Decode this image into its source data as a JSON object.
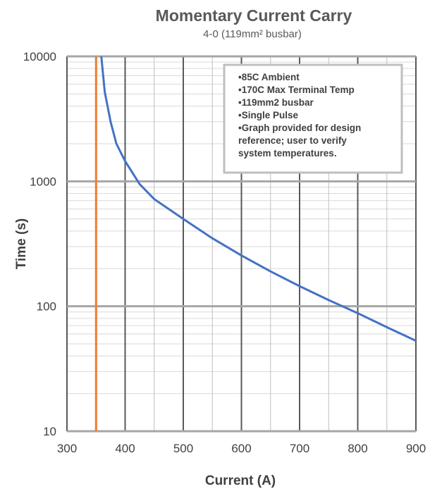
{
  "chart_data": {
    "type": "line",
    "title": "Momentary Current Carry",
    "subtitle": "4-0 (119mm² busbar)",
    "xlabel": "Current (A)",
    "ylabel": "Time (s)",
    "xlim": [
      300,
      900
    ],
    "ylim": [
      10,
      10000
    ],
    "y_scale": "log",
    "x_ticks": [
      "300",
      "400",
      "500",
      "600",
      "700",
      "800",
      "900"
    ],
    "y_ticks": [
      "10",
      "100",
      "1000",
      "10000"
    ],
    "grid": true,
    "series": [
      {
        "color": "#4472C4",
        "x": [
          359,
          365,
          375,
          385,
          400,
          425,
          450,
          500,
          550,
          600,
          650,
          700,
          750,
          800,
          850,
          900
        ],
        "y": [
          10000,
          5200,
          3000,
          2000,
          1450,
          950,
          720,
          500,
          350,
          255,
          190,
          145,
          112,
          88,
          68,
          53
        ]
      },
      {
        "color": "#ED7D31",
        "x": [
          350,
          350
        ],
        "y": [
          10,
          10000
        ]
      }
    ],
    "annotation": {
      "lines": [
        "•85C Ambient",
        "•170C Max Terminal Temp",
        "•119mm2 busbar",
        "•Single Pulse",
        "•Graph provided for design",
        "reference; user to verify",
        "system temperatures."
      ]
    }
  }
}
